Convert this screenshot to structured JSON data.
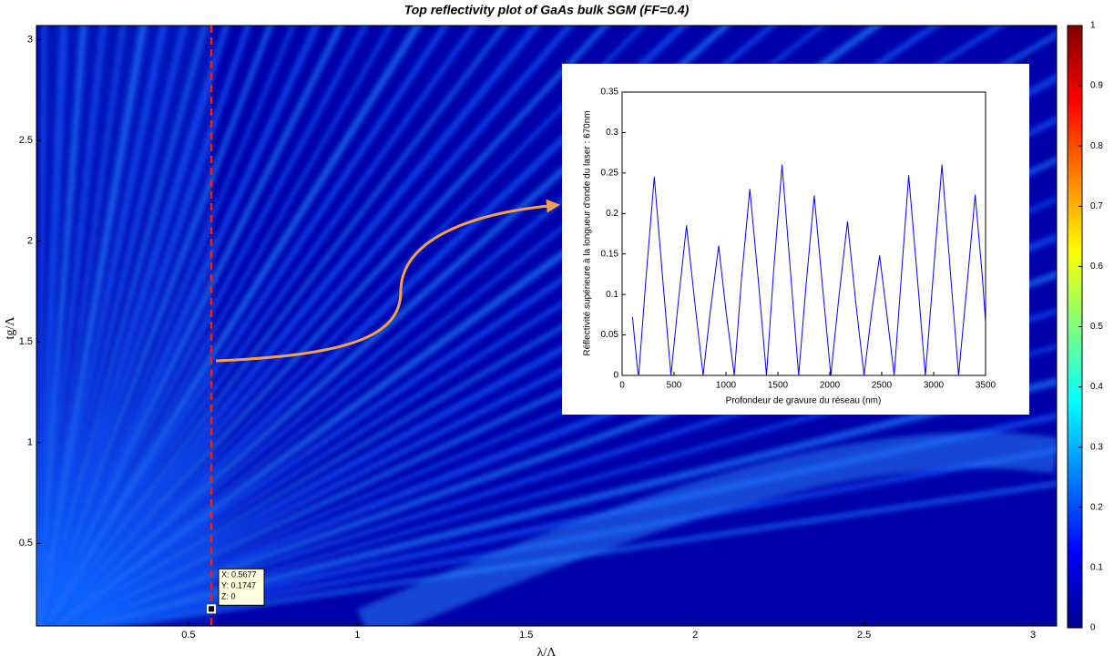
{
  "chart_data": [
    {
      "type": "heatmap",
      "title": "Top reflectivity plot of GaAs bulk SGM (FF=0.4)",
      "x_label": "λ/Λ",
      "y_label": "tg/Λ",
      "xlim": [
        0.05,
        3.07
      ],
      "xticks": [
        0.5,
        1,
        1.5,
        2,
        2.5,
        3
      ],
      "ylim": [
        0.09,
        3.07
      ],
      "yticks": [
        0.5,
        1,
        1.5,
        2,
        2.5,
        3
      ],
      "colormap": "jet",
      "colorbar": {
        "lim": [
          0,
          1
        ],
        "ticks": [
          0,
          0.1,
          0.2,
          0.3,
          0.4,
          0.5,
          0.6,
          0.7,
          0.8,
          0.9,
          1
        ]
      },
      "datatip": {
        "x": 0.5677,
        "y": 0.1747,
        "z": 0,
        "labels": [
          "X: 0.5677",
          "Y: 0.1747",
          "Z: 0"
        ]
      }
    },
    {
      "type": "line",
      "x_label": "Profondeur de gravure du réseau (nm)",
      "y_label": "Réflectivité supérieure à la longueur d'onde du laser : 670nm",
      "xlim": [
        0,
        3500
      ],
      "xticks": [
        0,
        500,
        1000,
        1500,
        2000,
        2500,
        3000,
        3500
      ],
      "ylim": [
        0,
        0.35
      ],
      "yticks": [
        0,
        0.05,
        0.1,
        0.15,
        0.2,
        0.25,
        0.3,
        0.35
      ],
      "color": "#0000ff",
      "x": [
        100,
        150,
        160,
        230,
        310,
        390,
        470,
        540,
        620,
        700,
        780,
        850,
        930,
        1000,
        1080,
        1150,
        1230,
        1310,
        1390,
        1460,
        1540,
        1620,
        1700,
        1770,
        1850,
        1930,
        2010,
        2090,
        2170,
        2250,
        2330,
        2400,
        2480,
        2550,
        2620,
        2690,
        2760,
        2840,
        2920,
        3000,
        3080,
        3160,
        3240,
        3320,
        3400,
        3470,
        3500
      ],
      "values": [
        0.072,
        0.005,
        0,
        0.12,
        0.245,
        0.12,
        0,
        0.09,
        0.185,
        0.09,
        0,
        0.08,
        0.16,
        0.08,
        0,
        0.12,
        0.23,
        0.12,
        0,
        0.13,
        0.26,
        0.13,
        0,
        0.11,
        0.222,
        0.11,
        0,
        0.1,
        0.19,
        0.09,
        0,
        0.075,
        0.148,
        0.075,
        0,
        0.125,
        0.247,
        0.125,
        0,
        0.13,
        0.26,
        0.13,
        0,
        0.11,
        0.223,
        0.12,
        0.065
      ]
    }
  ]
}
